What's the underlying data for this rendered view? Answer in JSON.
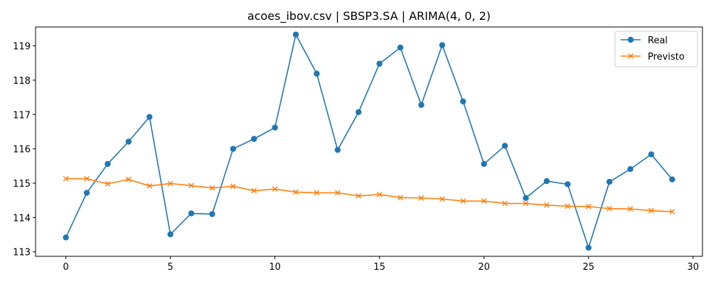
{
  "chart_data": {
    "type": "line",
    "title": "acoes_ibov.csv | SBSP3.SA | ARIMA(4, 0, 2)",
    "xlabel": "",
    "ylabel": "",
    "x": [
      0,
      1,
      2,
      3,
      4,
      5,
      6,
      7,
      8,
      9,
      10,
      11,
      12,
      13,
      14,
      15,
      16,
      17,
      18,
      19,
      20,
      21,
      22,
      23,
      24,
      25,
      26,
      27,
      28,
      29
    ],
    "xlim": [
      -1.45,
      30.45
    ],
    "ylim": [
      112.87,
      119.55
    ],
    "xticks": [
      0,
      5,
      10,
      15,
      20,
      25,
      30
    ],
    "yticks": [
      113,
      114,
      115,
      116,
      117,
      118,
      119
    ],
    "grid": false,
    "legend": "top-right",
    "series": [
      {
        "name": "Real",
        "color": "#1f77b4",
        "marker": "circle",
        "values": [
          113.42,
          114.72,
          115.56,
          116.21,
          116.93,
          113.51,
          114.12,
          114.1,
          116.0,
          116.29,
          116.62,
          119.33,
          118.19,
          115.97,
          117.07,
          118.48,
          118.95,
          117.28,
          119.02,
          117.38,
          115.56,
          116.09,
          114.57,
          115.06,
          114.97,
          113.12,
          115.04,
          115.41,
          115.84,
          115.11
        ]
      },
      {
        "name": "Previsto",
        "color": "#ff7f0e",
        "marker": "x",
        "values": [
          115.13,
          115.13,
          114.98,
          115.11,
          114.92,
          114.99,
          114.93,
          114.86,
          114.91,
          114.78,
          114.83,
          114.74,
          114.72,
          114.72,
          114.63,
          114.67,
          114.58,
          114.57,
          114.54,
          114.48,
          114.48,
          114.41,
          114.41,
          114.36,
          114.33,
          114.32,
          114.26,
          114.25,
          114.2,
          114.17
        ]
      }
    ]
  }
}
